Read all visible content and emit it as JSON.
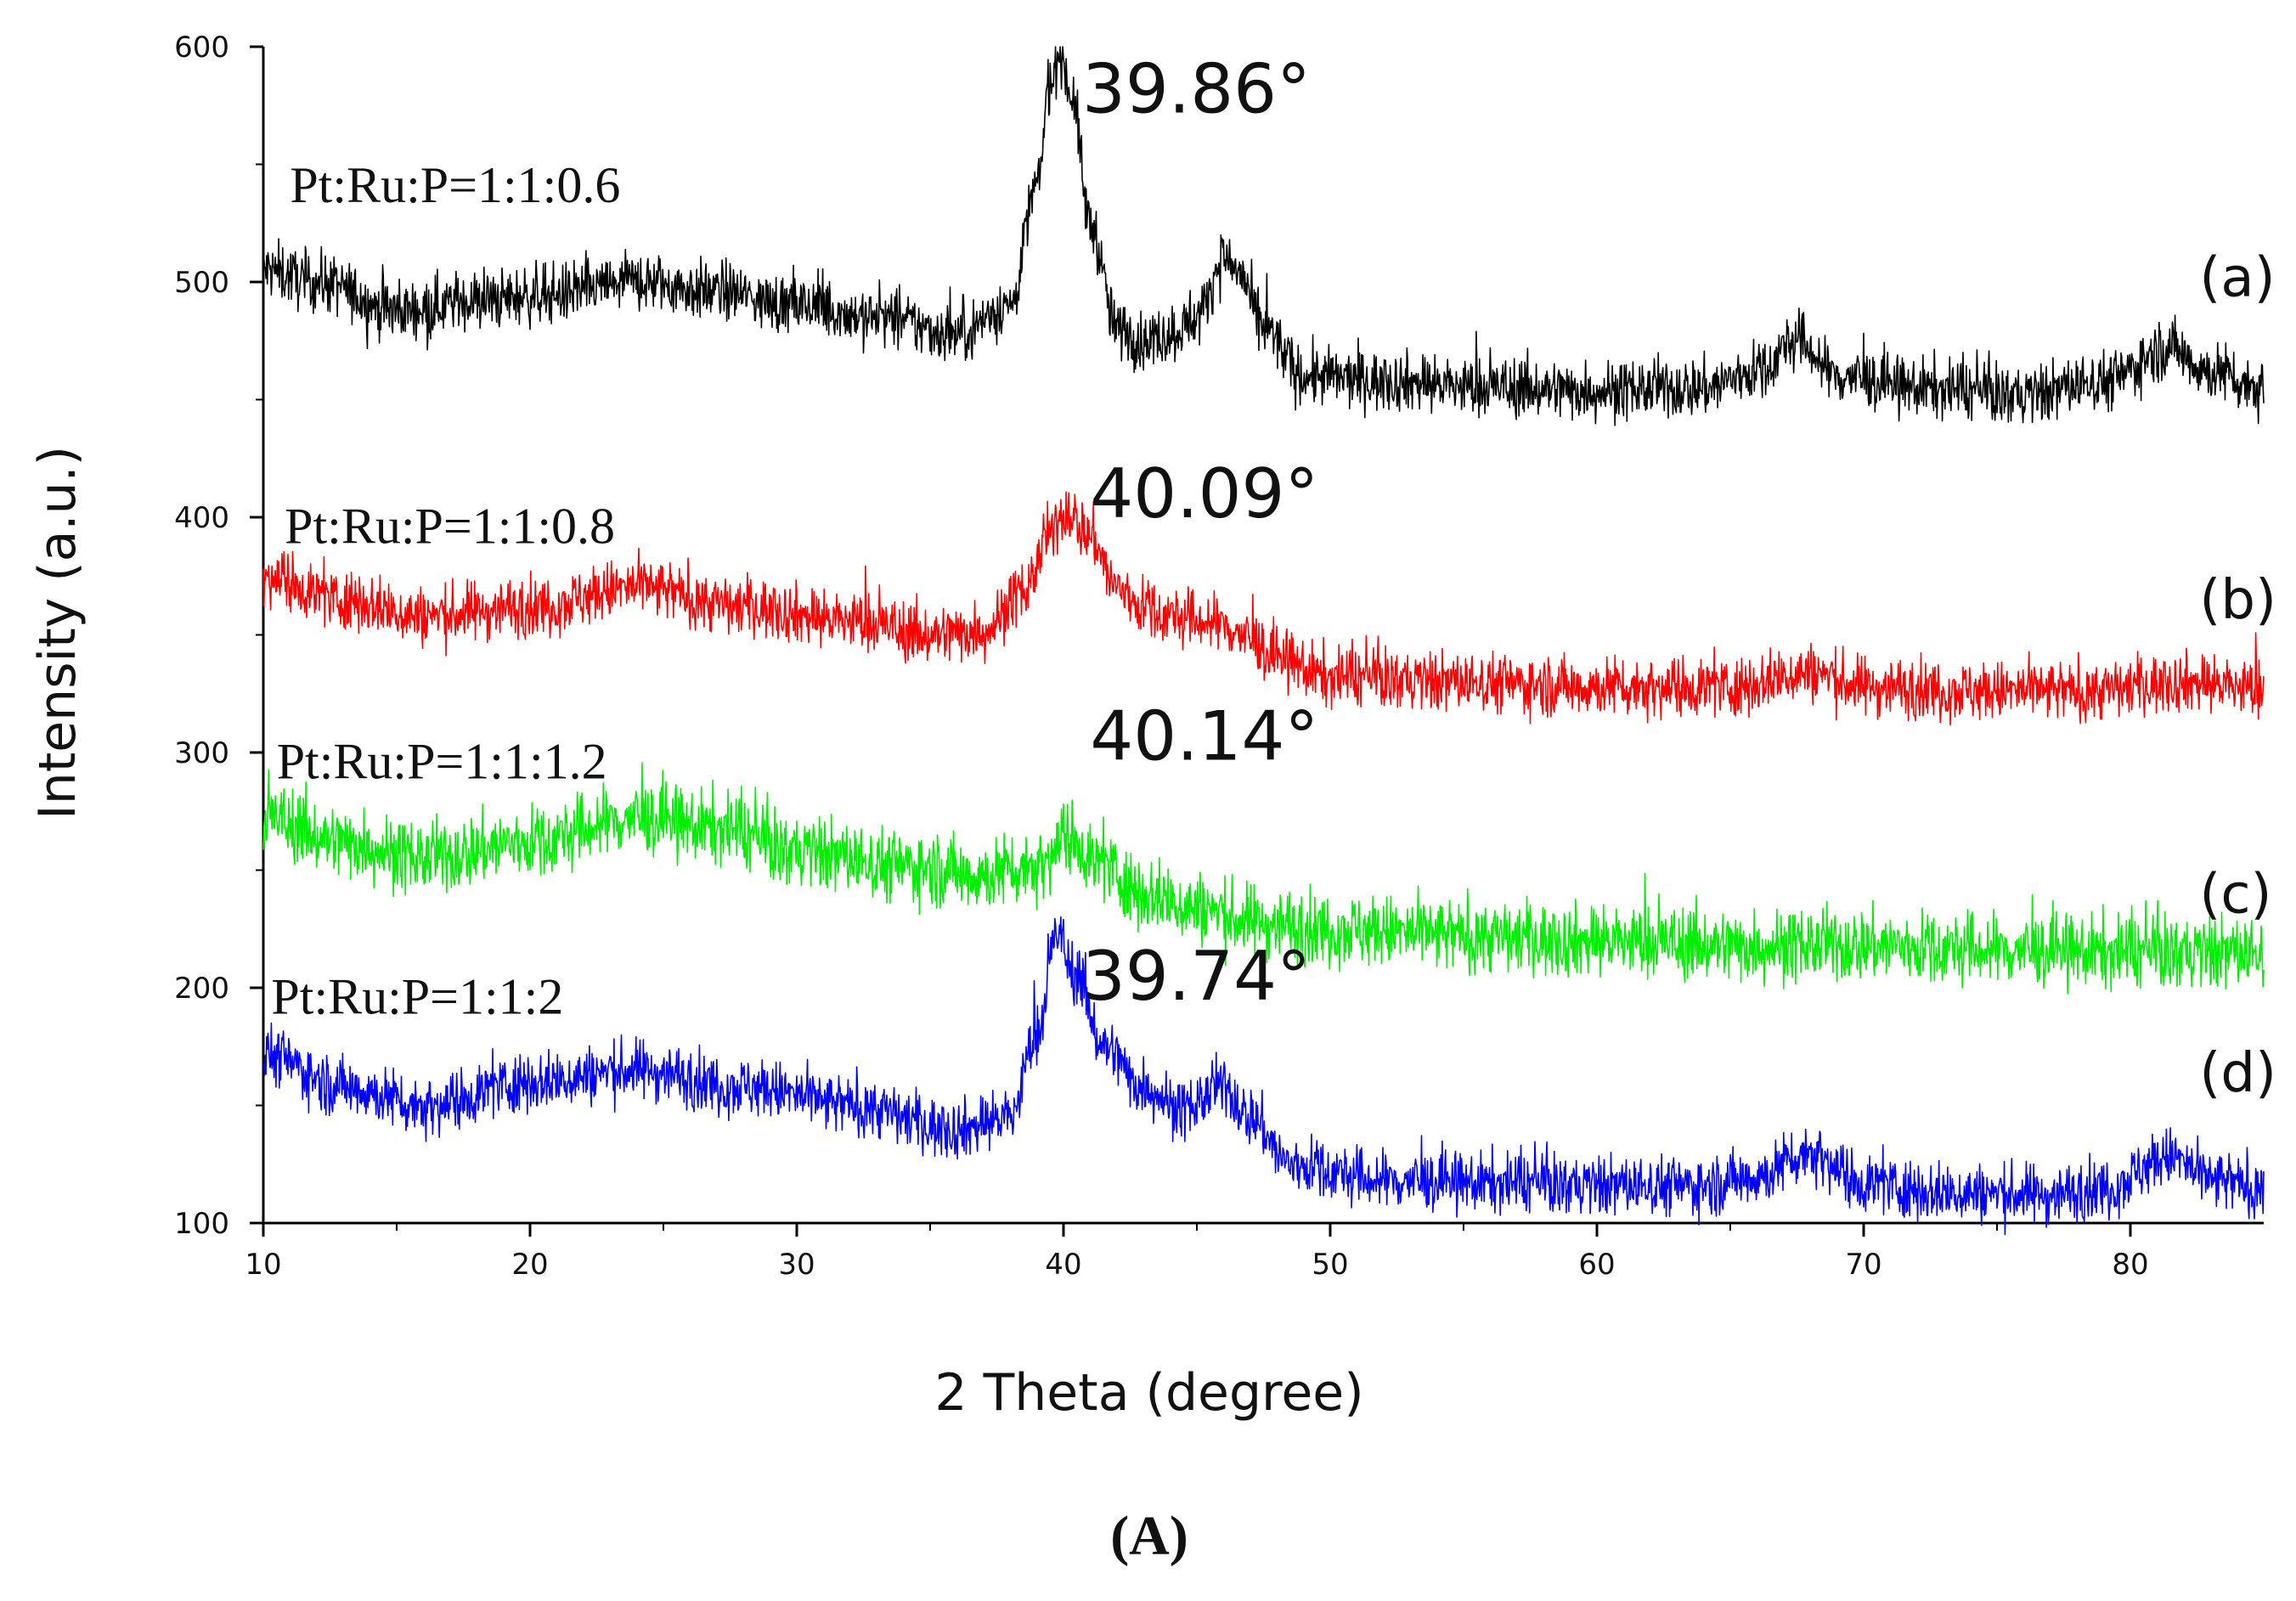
{
  "chart_data": {
    "type": "line",
    "title": "",
    "xlabel": "2 Theta (degree)",
    "ylabel": "Intensity (a.u.)",
    "xlim": [
      10,
      85
    ],
    "ylim": [
      100,
      600
    ],
    "xticks": [
      10,
      20,
      30,
      40,
      50,
      60,
      70,
      80
    ],
    "yticks": [
      100,
      200,
      300,
      400,
      500,
      600
    ],
    "grid": false,
    "caption": "(A)",
    "series": [
      {
        "name": "Pt:Ru:P=1:1:0.6",
        "letter": "(a)",
        "color": "#000000",
        "noise": 9,
        "x": [
          10,
          12,
          15,
          18,
          21,
          24,
          27,
          30,
          33,
          36,
          38,
          39,
          39.5,
          39.86,
          40.3,
          41,
          42,
          43,
          44,
          45,
          46,
          46.5,
          47.5,
          49,
          52,
          56,
          60,
          64,
          66,
          67.5,
          69,
          72,
          76,
          79,
          81.5,
          83,
          85
        ],
        "y": [
          505,
          500,
          488,
          492,
          495,
          500,
          496,
          490,
          485,
          478,
          490,
          540,
          585,
          598,
          580,
          525,
          480,
          475,
          478,
          485,
          510,
          505,
          480,
          460,
          458,
          455,
          454,
          455,
          462,
          475,
          460,
          455,
          452,
          458,
          472,
          462,
          455
        ]
      },
      {
        "name": "Pt:Ru:P=1:1:0.8",
        "letter": "(b)",
        "color": "#ff0000",
        "noise": 9,
        "x": [
          10,
          13,
          16,
          20,
          24,
          28,
          32,
          35,
          37,
          38.5,
          39.5,
          40.09,
          41,
          42,
          43,
          44,
          45,
          46,
          47,
          48,
          50,
          55,
          60,
          65,
          68,
          70,
          75,
          78,
          82,
          85
        ],
        "y": [
          375,
          365,
          358,
          362,
          370,
          362,
          356,
          350,
          352,
          368,
          392,
          403,
          392,
          370,
          362,
          358,
          356,
          354,
          348,
          340,
          332,
          330,
          328,
          328,
          334,
          328,
          326,
          326,
          330,
          327
        ]
      },
      {
        "name": "Pt:Ru:P=1:1:1.2",
        "letter": "(c)",
        "color": "#00ee00",
        "noise": 11,
        "x": [
          10,
          13,
          16,
          20,
          24,
          27,
          30,
          34,
          37,
          39,
          40.14,
          41.5,
          43,
          45,
          47,
          50,
          55,
          60,
          65,
          70,
          75,
          80,
          85
        ],
        "y": [
          272,
          262,
          255,
          262,
          272,
          268,
          258,
          252,
          248,
          252,
          264,
          252,
          240,
          234,
          228,
          225,
          222,
          220,
          218,
          218,
          216,
          215,
          215
        ]
      },
      {
        "name": "Pt:Ru:P=1:1:2",
        "letter": "(d)",
        "color": "#0000ff",
        "noise": 9,
        "x": [
          10,
          13,
          16,
          20,
          24,
          28,
          32,
          36,
          38,
          39,
          39.74,
          40.5,
          41.5,
          43,
          44.5,
          46,
          47,
          48.5,
          52,
          56,
          60,
          64,
          66,
          68,
          70,
          73,
          77,
          79,
          81.5,
          83,
          85
        ],
        "y": [
          172,
          158,
          150,
          160,
          165,
          158,
          150,
          140,
          145,
          180,
          222,
          205,
          175,
          158,
          148,
          158,
          145,
          125,
          118,
          117,
          116,
          116,
          120,
          130,
          117,
          113,
          112,
          115,
          128,
          118,
          115
        ]
      }
    ],
    "peak_labels": [
      {
        "text": "39.86°",
        "x": 40.7,
        "y": 572
      },
      {
        "text": "40.09°",
        "x": 41.0,
        "y": 400
      },
      {
        "text": "40.14°",
        "x": 41.0,
        "y": 297
      },
      {
        "text": "39.74°",
        "x": 40.7,
        "y": 195
      }
    ],
    "series_label_positions": [
      {
        "x": 11.0,
        "y": 534
      },
      {
        "x": 10.8,
        "y": 389
      },
      {
        "x": 10.5,
        "y": 289
      },
      {
        "x": 10.3,
        "y": 189
      }
    ],
    "letter_label_positions": [
      {
        "x": 81.0,
        "y": 494
      },
      {
        "x": 81.0,
        "y": 357
      },
      {
        "x": 81.0,
        "y": 232
      },
      {
        "x": 81.0,
        "y": 156
      }
    ]
  }
}
